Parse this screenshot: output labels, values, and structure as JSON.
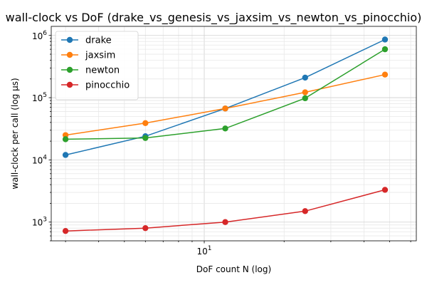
{
  "chart_data": {
    "type": "line",
    "title": "wall-clock vs DoF (drake_vs_genesis_vs_jaxsim_vs_newton_vs_pinocchio)",
    "xlabel": "DoF count N (log)",
    "ylabel": "wall-clock per call (log µs)",
    "x_scale": "log",
    "y_scale": "log",
    "xlim": [
      2.65,
      63
    ],
    "ylim": [
      500,
      1400000
    ],
    "grid": true,
    "legend_position": "top-left",
    "x": [
      3,
      6,
      12,
      24,
      48
    ],
    "x_ticks": [
      {
        "value": 10,
        "base": "10",
        "exp": "1"
      }
    ],
    "y_ticks": [
      {
        "value": 1000,
        "base": "10",
        "exp": "3"
      },
      {
        "value": 10000,
        "base": "10",
        "exp": "4"
      },
      {
        "value": 100000,
        "base": "10",
        "exp": "5"
      },
      {
        "value": 1000000,
        "base": "10",
        "exp": "6"
      }
    ],
    "series": [
      {
        "name": "drake",
        "color": "#1f77b4",
        "values": [
          12000,
          24000,
          67000,
          210000,
          860000
        ]
      },
      {
        "name": "jaxsim",
        "color": "#ff7f0e",
        "values": [
          25000,
          39000,
          67000,
          122000,
          235000
        ]
      },
      {
        "name": "newton",
        "color": "#2ca02c",
        "values": [
          21500,
          22500,
          32000,
          98000,
          600000
        ]
      },
      {
        "name": "pinocchio",
        "color": "#d62728",
        "values": [
          720,
          800,
          1000,
          1500,
          3300
        ]
      }
    ]
  }
}
